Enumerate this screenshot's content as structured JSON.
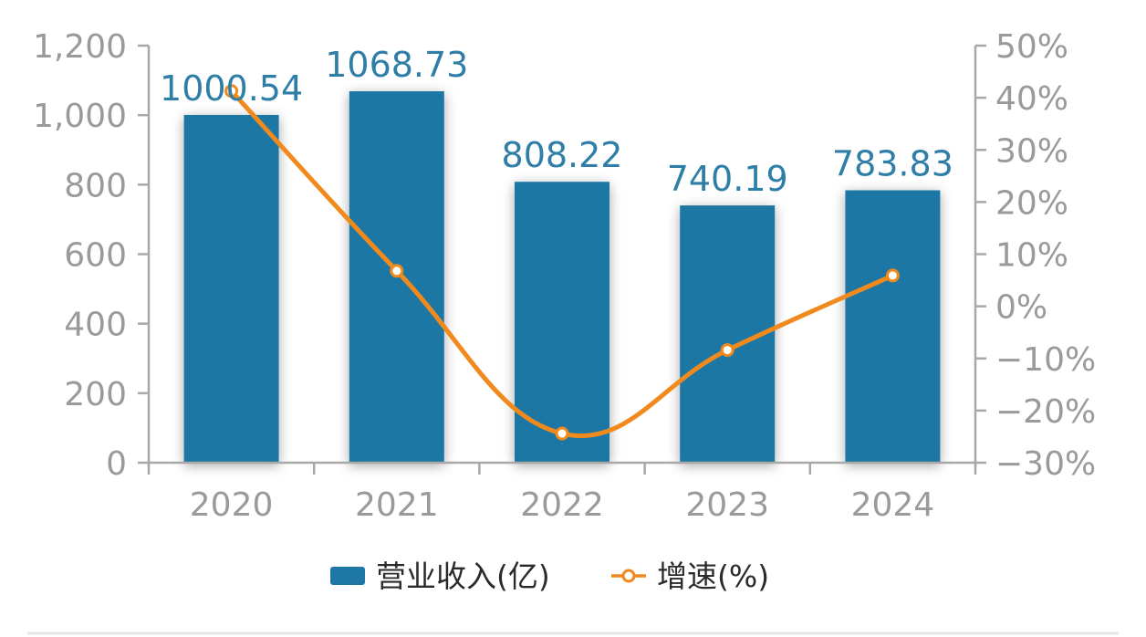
{
  "chart_data": {
    "type": "bar",
    "categories": [
      "2020",
      "2021",
      "2022",
      "2023",
      "2024"
    ],
    "series": [
      {
        "name": "营业收入(亿)",
        "type": "bar",
        "axis": "left",
        "values": [
          1000.54,
          1068.73,
          808.22,
          740.19,
          783.83
        ],
        "data_labels": [
          "1000.54",
          "1068.73",
          "808.22",
          "740.19",
          "783.83"
        ],
        "color": "#1f77a5"
      },
      {
        "name": "增速(%)",
        "type": "line",
        "axis": "right",
        "values": [
          41.3,
          6.8,
          -24.4,
          -8.4,
          5.9
        ],
        "color": "#f08a1c",
        "marker": "hollow-circle",
        "smooth": true
      }
    ],
    "y_left": {
      "ylim": [
        0,
        1200
      ],
      "ticks": [
        0,
        200,
        400,
        600,
        800,
        1000,
        1200
      ],
      "tick_labels": [
        "0",
        "200",
        "400",
        "600",
        "800",
        "1,000",
        "1,200"
      ]
    },
    "y_right": {
      "ylim": [
        -30,
        50
      ],
      "ticks": [
        -30,
        -20,
        -10,
        0,
        10,
        20,
        30,
        40,
        50
      ],
      "tick_labels": [
        "−30%",
        "−20%",
        "−10%",
        "0%",
        "10%",
        "20%",
        "30%",
        "40%",
        "50%"
      ]
    },
    "grid": false,
    "legend_position": "bottom-center",
    "title": "",
    "xlabel": "",
    "ylabel": ""
  },
  "colors": {
    "bar": "#1f77a5",
    "line": "#f08a1c",
    "axis": "#a8a8a8",
    "tick_text": "#9a9a9a",
    "data_label": "#2f7ea8"
  }
}
